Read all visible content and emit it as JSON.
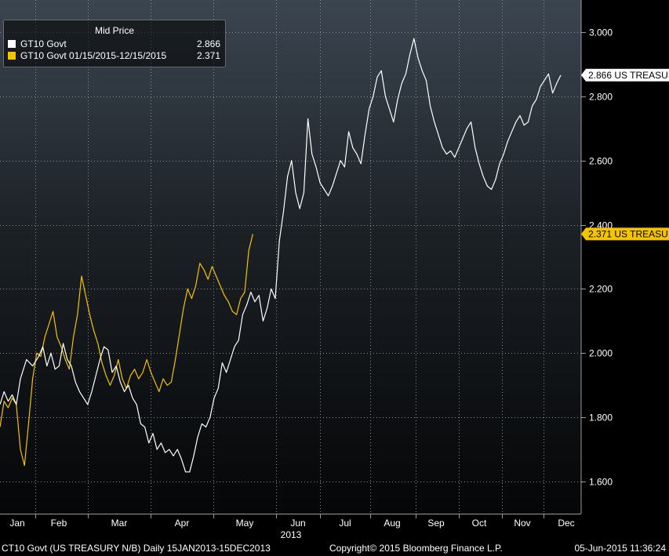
{
  "chart_data": {
    "type": "line",
    "title": "Mid Price",
    "x_range": [
      "2013-01-15",
      "2013-12-15"
    ],
    "ylim": [
      1.5,
      3.1
    ],
    "y_ticks": [
      "1.600",
      "1.800",
      "2.000",
      "2.200",
      "2.400",
      "2.600",
      "2.800",
      "3.000"
    ],
    "x_month_labels": [
      "Jan",
      "Feb",
      "Mar",
      "Apr",
      "May",
      "Jun",
      "Jul",
      "Aug",
      "Sep",
      "Oct",
      "Nov",
      "Dec"
    ],
    "x_year_label": "2013",
    "grid": true,
    "legend_position": "top-left",
    "series": [
      {
        "name": "GT10 Govt",
        "last_value": "2.866",
        "end_label": "2.866 US TREASU",
        "color": "#ffffff",
        "points": [
          [
            0,
            1.84
          ],
          [
            2,
            1.88
          ],
          [
            4,
            1.85
          ],
          [
            6,
            1.87
          ],
          [
            8,
            1.84
          ],
          [
            10,
            1.92
          ],
          [
            13,
            1.98
          ],
          [
            16,
            1.96
          ],
          [
            19,
            1.99
          ],
          [
            21,
            2.02
          ],
          [
            23,
            1.96
          ],
          [
            25,
            2.0
          ],
          [
            27,
            1.95
          ],
          [
            29,
            1.96
          ],
          [
            31,
            2.03
          ],
          [
            33,
            1.98
          ],
          [
            35,
            1.96
          ],
          [
            37,
            1.91
          ],
          [
            39,
            1.88
          ],
          [
            41,
            1.86
          ],
          [
            43,
            1.84
          ],
          [
            45,
            1.88
          ],
          [
            47,
            1.93
          ],
          [
            49,
            1.98
          ],
          [
            51,
            2.02
          ],
          [
            53,
            2.01
          ],
          [
            55,
            1.94
          ],
          [
            57,
            1.96
          ],
          [
            59,
            1.91
          ],
          [
            61,
            1.88
          ],
          [
            63,
            1.9
          ],
          [
            65,
            1.86
          ],
          [
            67,
            1.84
          ],
          [
            69,
            1.78
          ],
          [
            71,
            1.77
          ],
          [
            73,
            1.72
          ],
          [
            75,
            1.75
          ],
          [
            77,
            1.7
          ],
          [
            79,
            1.72
          ],
          [
            81,
            1.69
          ],
          [
            83,
            1.7
          ],
          [
            85,
            1.68
          ],
          [
            87,
            1.7
          ],
          [
            89,
            1.67
          ],
          [
            91,
            1.63
          ],
          [
            93,
            1.63
          ],
          [
            95,
            1.68
          ],
          [
            97,
            1.74
          ],
          [
            99,
            1.78
          ],
          [
            101,
            1.77
          ],
          [
            103,
            1.8
          ],
          [
            105,
            1.86
          ],
          [
            107,
            1.89
          ],
          [
            109,
            1.97
          ],
          [
            111,
            1.94
          ],
          [
            113,
            1.98
          ],
          [
            115,
            2.02
          ],
          [
            117,
            2.04
          ],
          [
            119,
            2.12
          ],
          [
            121,
            2.15
          ],
          [
            123,
            2.19
          ],
          [
            125,
            2.16
          ],
          [
            127,
            2.18
          ],
          [
            129,
            2.1
          ],
          [
            131,
            2.14
          ],
          [
            133,
            2.2
          ],
          [
            135,
            2.17
          ],
          [
            137,
            2.35
          ],
          [
            139,
            2.44
          ],
          [
            141,
            2.55
          ],
          [
            143,
            2.6
          ],
          [
            145,
            2.5
          ],
          [
            147,
            2.45
          ],
          [
            149,
            2.5
          ],
          [
            151,
            2.73
          ],
          [
            153,
            2.62
          ],
          [
            155,
            2.58
          ],
          [
            157,
            2.53
          ],
          [
            159,
            2.51
          ],
          [
            161,
            2.49
          ],
          [
            163,
            2.52
          ],
          [
            165,
            2.56
          ],
          [
            167,
            2.6
          ],
          [
            169,
            2.58
          ],
          [
            171,
            2.69
          ],
          [
            173,
            2.64
          ],
          [
            175,
            2.62
          ],
          [
            177,
            2.59
          ],
          [
            179,
            2.68
          ],
          [
            181,
            2.76
          ],
          [
            183,
            2.8
          ],
          [
            185,
            2.86
          ],
          [
            187,
            2.88
          ],
          [
            189,
            2.8
          ],
          [
            191,
            2.76
          ],
          [
            193,
            2.72
          ],
          [
            195,
            2.79
          ],
          [
            197,
            2.84
          ],
          [
            199,
            2.87
          ],
          [
            201,
            2.93
          ],
          [
            203,
            2.98
          ],
          [
            205,
            2.92
          ],
          [
            207,
            2.88
          ],
          [
            209,
            2.85
          ],
          [
            211,
            2.77
          ],
          [
            213,
            2.72
          ],
          [
            215,
            2.68
          ],
          [
            217,
            2.64
          ],
          [
            219,
            2.62
          ],
          [
            221,
            2.63
          ],
          [
            223,
            2.61
          ],
          [
            225,
            2.64
          ],
          [
            227,
            2.67
          ],
          [
            229,
            2.7
          ],
          [
            231,
            2.72
          ],
          [
            233,
            2.64
          ],
          [
            235,
            2.59
          ],
          [
            237,
            2.55
          ],
          [
            239,
            2.52
          ],
          [
            241,
            2.51
          ],
          [
            243,
            2.54
          ],
          [
            245,
            2.59
          ],
          [
            247,
            2.62
          ],
          [
            249,
            2.66
          ],
          [
            251,
            2.69
          ],
          [
            253,
            2.72
          ],
          [
            255,
            2.74
          ],
          [
            257,
            2.71
          ],
          [
            259,
            2.72
          ],
          [
            261,
            2.77
          ],
          [
            263,
            2.79
          ],
          [
            265,
            2.83
          ],
          [
            267,
            2.85
          ],
          [
            269,
            2.87
          ],
          [
            271,
            2.81
          ],
          [
            273,
            2.84
          ],
          [
            275,
            2.866
          ]
        ]
      },
      {
        "name": "GT10 Govt 01/15/2015-12/15/2015",
        "last_value": "2.371",
        "end_label": "2.371 US TREASU",
        "color": "#f5c400",
        "points": [
          [
            0,
            1.77
          ],
          [
            2,
            1.85
          ],
          [
            4,
            1.83
          ],
          [
            6,
            1.86
          ],
          [
            8,
            1.84
          ],
          [
            10,
            1.7
          ],
          [
            12,
            1.65
          ],
          [
            14,
            1.78
          ],
          [
            16,
            1.92
          ],
          [
            18,
            2.0
          ],
          [
            20,
            1.99
          ],
          [
            22,
            2.05
          ],
          [
            24,
            2.09
          ],
          [
            26,
            2.13
          ],
          [
            28,
            2.05
          ],
          [
            30,
            2.02
          ],
          [
            32,
            1.98
          ],
          [
            34,
            1.95
          ],
          [
            36,
            2.05
          ],
          [
            38,
            2.12
          ],
          [
            40,
            2.24
          ],
          [
            42,
            2.18
          ],
          [
            44,
            2.12
          ],
          [
            46,
            2.07
          ],
          [
            48,
            2.03
          ],
          [
            50,
            1.97
          ],
          [
            52,
            1.93
          ],
          [
            54,
            1.9
          ],
          [
            56,
            1.93
          ],
          [
            58,
            1.98
          ],
          [
            60,
            1.92
          ],
          [
            62,
            1.89
          ],
          [
            64,
            1.93
          ],
          [
            66,
            1.95
          ],
          [
            68,
            1.92
          ],
          [
            70,
            1.94
          ],
          [
            72,
            1.98
          ],
          [
            74,
            1.94
          ],
          [
            76,
            1.91
          ],
          [
            78,
            1.88
          ],
          [
            80,
            1.92
          ],
          [
            82,
            1.9
          ],
          [
            84,
            1.91
          ],
          [
            86,
            1.98
          ],
          [
            88,
            2.06
          ],
          [
            90,
            2.14
          ],
          [
            92,
            2.2
          ],
          [
            94,
            2.17
          ],
          [
            96,
            2.21
          ],
          [
            98,
            2.28
          ],
          [
            100,
            2.26
          ],
          [
            102,
            2.23
          ],
          [
            104,
            2.27
          ],
          [
            106,
            2.24
          ],
          [
            108,
            2.21
          ],
          [
            110,
            2.18
          ],
          [
            112,
            2.16
          ],
          [
            114,
            2.13
          ],
          [
            116,
            2.12
          ],
          [
            118,
            2.17
          ],
          [
            120,
            2.19
          ],
          [
            122,
            2.32
          ],
          [
            124,
            2.371
          ]
        ]
      }
    ]
  },
  "footer": {
    "left": "CT10 Govt (US TREASURY N/B)  Daily 15JAN2013-15DEC2013",
    "center": "Copyright© 2015 Bloomberg Finance L.P.",
    "right": "05-Jun-2015 11:36:24"
  }
}
